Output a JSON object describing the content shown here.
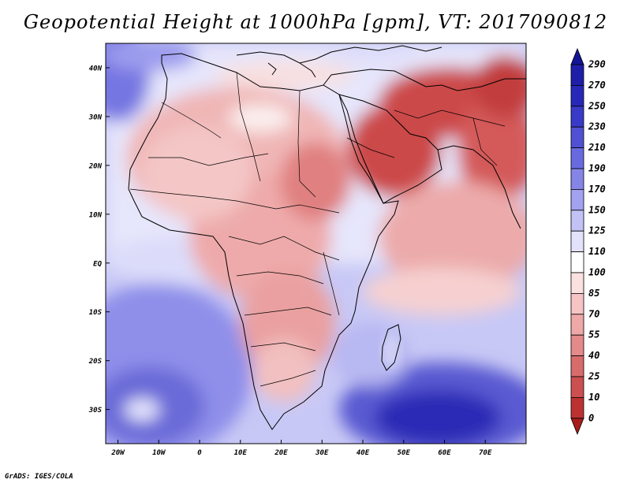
{
  "title": "Geopotential Height at 1000hPa [gpm], VT: 2017090812",
  "credit": "GrADS: IGES/COLA",
  "map": {
    "variable": "Geopotential Height",
    "level": "1000hPa",
    "units": "gpm",
    "valid_time": "2017090812",
    "lon_range": [
      -23,
      80
    ],
    "lat_range": [
      -37,
      45
    ],
    "lat_ticks": [
      {
        "value": 40,
        "label": "40N"
      },
      {
        "value": 30,
        "label": "30N"
      },
      {
        "value": 20,
        "label": "20N"
      },
      {
        "value": 10,
        "label": "10N"
      },
      {
        "value": 0,
        "label": "EQ"
      },
      {
        "value": -10,
        "label": "10S"
      },
      {
        "value": -20,
        "label": "20S"
      },
      {
        "value": -30,
        "label": "30S"
      }
    ],
    "lon_ticks": [
      {
        "value": -20,
        "label": "20W"
      },
      {
        "value": -10,
        "label": "10W"
      },
      {
        "value": 0,
        "label": "0"
      },
      {
        "value": 10,
        "label": "10E"
      },
      {
        "value": 20,
        "label": "20E"
      },
      {
        "value": 30,
        "label": "30E"
      },
      {
        "value": 40,
        "label": "40E"
      },
      {
        "value": 50,
        "label": "50E"
      },
      {
        "value": 60,
        "label": "60E"
      },
      {
        "value": 70,
        "label": "70E"
      }
    ]
  },
  "legend": {
    "top_value": "290",
    "levels": [
      {
        "label": "270",
        "color": "#1e1ea8"
      },
      {
        "label": "250",
        "color": "#2828b8"
      },
      {
        "label": "230",
        "color": "#3a3ac8"
      },
      {
        "label": "210",
        "color": "#5050d4"
      },
      {
        "label": "190",
        "color": "#6a6ae0"
      },
      {
        "label": "170",
        "color": "#8585e8"
      },
      {
        "label": "150",
        "color": "#a2a2f0"
      },
      {
        "label": "125",
        "color": "#c2c2f6"
      },
      {
        "label": "110",
        "color": "#e2e2fb"
      },
      {
        "label": "100",
        "color": "#ffffff"
      },
      {
        "label": "85",
        "color": "#fbe0e0"
      },
      {
        "label": "70",
        "color": "#f6c4c4"
      },
      {
        "label": "55",
        "color": "#eea8a8"
      },
      {
        "label": "40",
        "color": "#e48a8a"
      },
      {
        "label": "25",
        "color": "#d86c6c"
      },
      {
        "label": "10",
        "color": "#cc5050"
      },
      {
        "label": "0",
        "color": "#bc3232"
      }
    ],
    "top_color": "#141496",
    "bottom_color": "#a81c1c"
  }
}
